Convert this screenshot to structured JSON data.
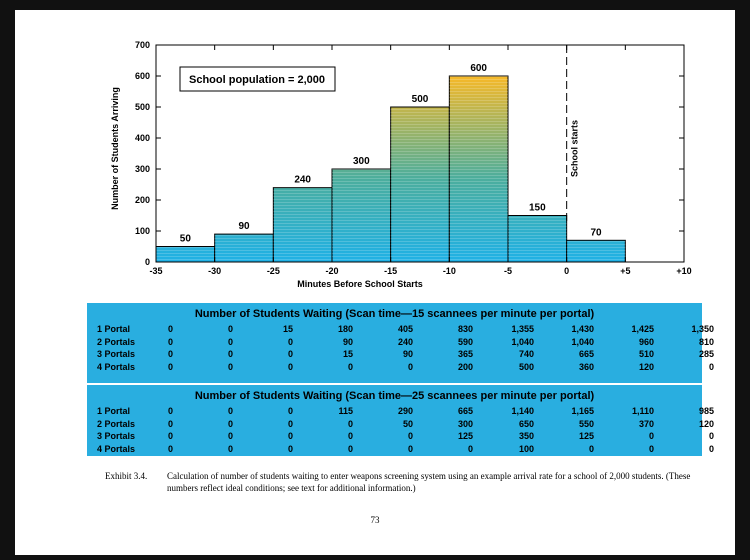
{
  "chart_data": {
    "type": "bar",
    "xlabel": "Minutes Before School Starts",
    "ylabel": "Number of Students Arriving",
    "xlim": [
      -35,
      10
    ],
    "ylim": [
      0,
      700
    ],
    "x_ticks": [
      "-35",
      "-30",
      "-25",
      "-20",
      "-15",
      "-10",
      "-5",
      "0",
      "+5",
      "+10"
    ],
    "x_tick_values": [
      -35,
      -30,
      -25,
      -20,
      -15,
      -10,
      -5,
      0,
      5,
      10
    ],
    "y_ticks": [
      0,
      100,
      200,
      300,
      400,
      500,
      600,
      700
    ],
    "bins": [
      {
        "start": -35,
        "end": -30,
        "value": 50
      },
      {
        "start": -30,
        "end": -25,
        "value": 90
      },
      {
        "start": -25,
        "end": -20,
        "value": 240
      },
      {
        "start": -20,
        "end": -15,
        "value": 300
      },
      {
        "start": -15,
        "end": -10,
        "value": 500
      },
      {
        "start": -10,
        "end": -5,
        "value": 600
      },
      {
        "start": -5,
        "end": 0,
        "value": 150
      },
      {
        "start": 0,
        "end": 5,
        "value": 70
      }
    ],
    "annotation": "School population = 2,000",
    "marker": {
      "x": 0,
      "label": "School starts"
    },
    "grid": false,
    "colors": {
      "low": "#1fb1e6",
      "mid": "#4cae9d",
      "high": "#f7b928"
    }
  },
  "tables": [
    {
      "title": "Number of Students Waiting (Scan time—15 scannees per minute per portal)",
      "rows": [
        {
          "label": "1 Portal",
          "values": [
            "0",
            "0",
            "15",
            "180",
            "405",
            "830",
            "1,355",
            "1,430",
            "1,425",
            "1,350"
          ]
        },
        {
          "label": "2 Portals",
          "values": [
            "0",
            "0",
            "0",
            "90",
            "240",
            "590",
            "1,040",
            "1,040",
            "960",
            "810"
          ]
        },
        {
          "label": "3 Portals",
          "values": [
            "0",
            "0",
            "0",
            "15",
            "90",
            "365",
            "740",
            "665",
            "510",
            "285"
          ]
        },
        {
          "label": "4 Portals",
          "values": [
            "0",
            "0",
            "0",
            "0",
            "0",
            "200",
            "500",
            "360",
            "120",
            "0"
          ]
        }
      ]
    },
    {
      "title": "Number of Students Waiting (Scan time—25 scannees per minute per portal)",
      "rows": [
        {
          "label": "1 Portal",
          "values": [
            "0",
            "0",
            "0",
            "115",
            "290",
            "665",
            "1,140",
            "1,165",
            "1,110",
            "985"
          ]
        },
        {
          "label": "2 Portals",
          "values": [
            "0",
            "0",
            "0",
            "0",
            "50",
            "300",
            "650",
            "550",
            "370",
            "120"
          ]
        },
        {
          "label": "3 Portals",
          "values": [
            "0",
            "0",
            "0",
            "0",
            "0",
            "125",
            "350",
            "125",
            "0",
            "0"
          ]
        },
        {
          "label": "4 Portals",
          "values": [
            "0",
            "0",
            "0",
            "0",
            "0",
            "0",
            "100",
            "0",
            "0",
            "0"
          ]
        }
      ]
    }
  ],
  "caption": {
    "label": "Exhibit 3.4.",
    "text": "Calculation of number of students waiting to enter weapons screening system using an example arrival rate for a school of 2,000 students. (These numbers reflect ideal conditions; see text for additional information.)"
  },
  "page_number": "73"
}
